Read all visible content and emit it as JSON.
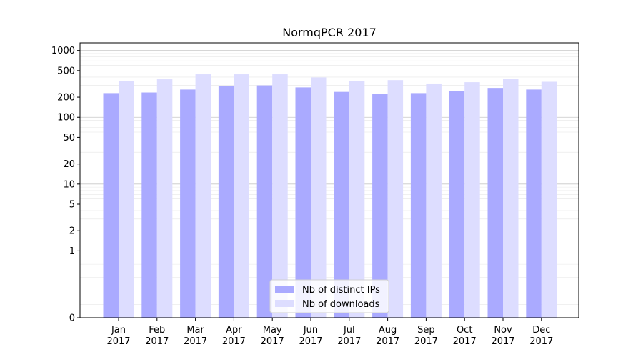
{
  "chart_data": {
    "type": "bar",
    "title": "NormqPCR 2017",
    "xlabel": "",
    "ylabel": "",
    "y_scale": "symlog",
    "ylim": [
      0,
      1300
    ],
    "y_ticks": [
      0,
      1,
      2,
      5,
      10,
      20,
      50,
      100,
      200,
      500,
      1000
    ],
    "y_tick_labels": [
      "0",
      "1",
      "2",
      "5",
      "10",
      "20",
      "50",
      "100",
      "200",
      "500",
      "1000"
    ],
    "grid": true,
    "legend_position": "bottom-center",
    "categories": [
      [
        "Jan",
        "2017"
      ],
      [
        "Feb",
        "2017"
      ],
      [
        "Mar",
        "2017"
      ],
      [
        "Apr",
        "2017"
      ],
      [
        "May",
        "2017"
      ],
      [
        "Jun",
        "2017"
      ],
      [
        "Jul",
        "2017"
      ],
      [
        "Aug",
        "2017"
      ],
      [
        "Sep",
        "2017"
      ],
      [
        "Oct",
        "2017"
      ],
      [
        "Nov",
        "2017"
      ],
      [
        "Dec",
        "2017"
      ]
    ],
    "series": [
      {
        "name": "Nb of distinct IPs",
        "color": "#aaaaff",
        "values": [
          230,
          235,
          260,
          290,
          300,
          280,
          240,
          225,
          230,
          245,
          275,
          260
        ]
      },
      {
        "name": "Nb of downloads",
        "color": "#ddddff",
        "values": [
          345,
          370,
          440,
          440,
          440,
          395,
          345,
          360,
          320,
          335,
          375,
          340
        ]
      }
    ]
  }
}
